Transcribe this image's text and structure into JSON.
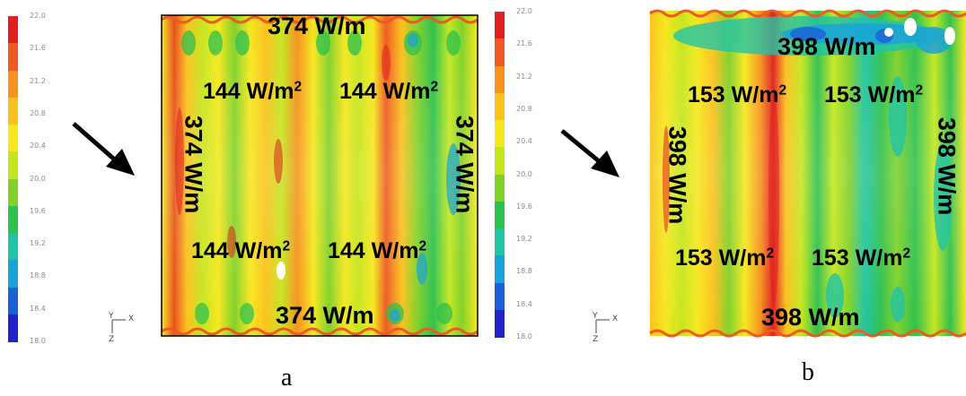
{
  "scale": {
    "ticks": [
      "22.0",
      "21.6",
      "21.2",
      "20.8",
      "20.4",
      "20.0",
      "19.6",
      "19.2",
      "18.8",
      "18.4",
      "18.0"
    ],
    "colors": [
      "#e0201e",
      "#ee5b22",
      "#f6921e",
      "#fbc21d",
      "#f6e81d",
      "#c5e61f",
      "#82d12a",
      "#2fc14e",
      "#22c4a6",
      "#1aa3d8",
      "#1b61d6",
      "#1f23c8"
    ]
  },
  "axes": {
    "y": "Y",
    "x": "X",
    "z": "Z"
  },
  "panels": [
    {
      "caption": "a",
      "top": "374 W/m",
      "bottom": "374 W/m",
      "left": "374 W/m",
      "right": "374 W/m",
      "inner": [
        "144 W/m",
        "144 W/m",
        "144 W/m",
        "144 W/m"
      ],
      "sup": "2"
    },
    {
      "caption": "b",
      "top": "398 W/m",
      "bottom": "398 W/m",
      "left": "398 W/m",
      "right": "398 W/m",
      "inner": [
        "153 W/m",
        "153 W/m",
        "153 W/m",
        "153 W/m"
      ],
      "sup": "2"
    }
  ]
}
